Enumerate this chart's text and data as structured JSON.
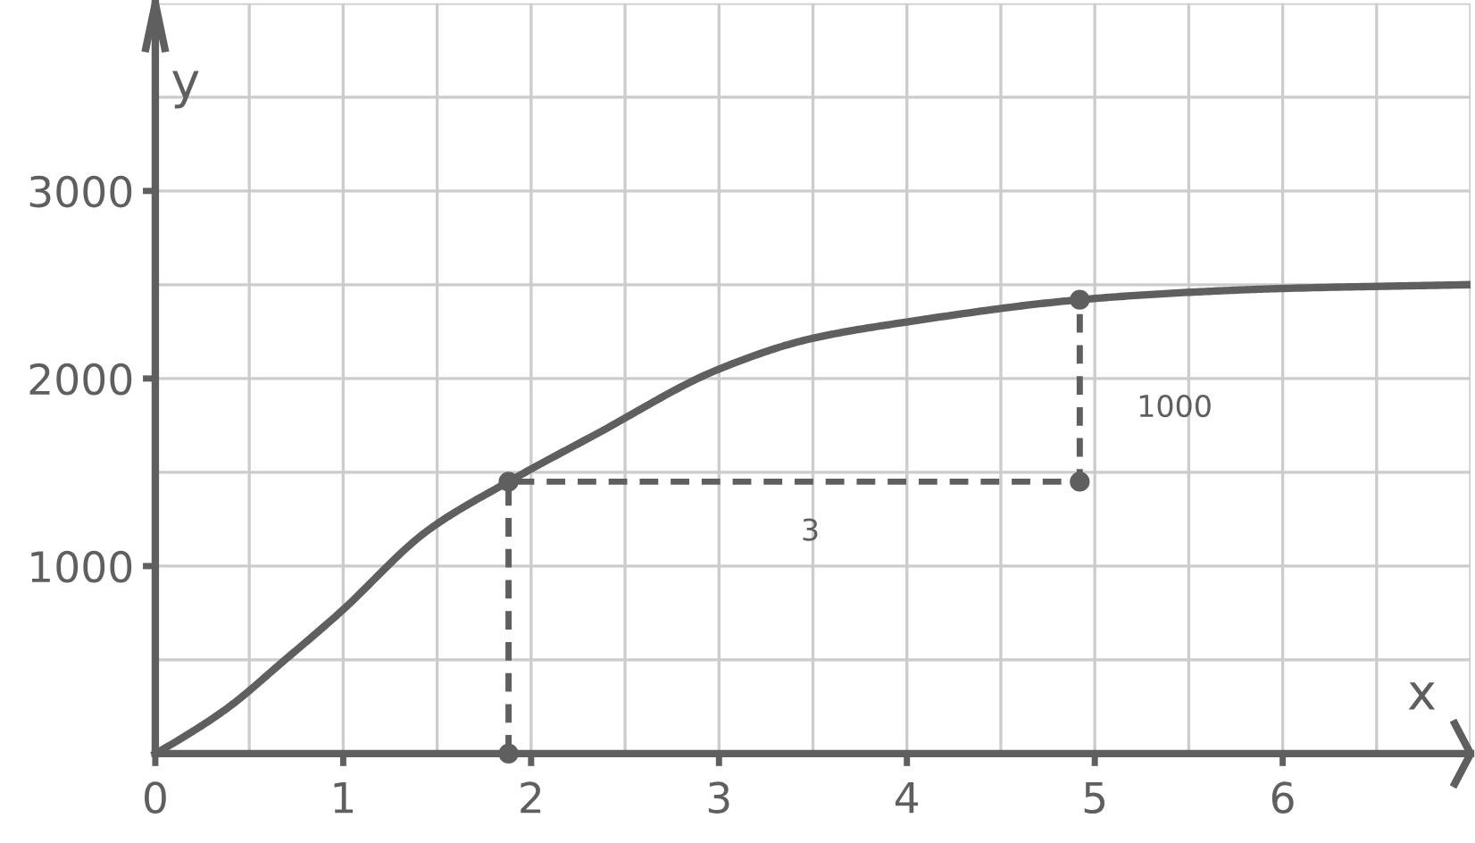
{
  "chart_data": {
    "type": "line",
    "xlabel": "x",
    "ylabel": "y",
    "series": [
      {
        "color": "#5f5f5f",
        "x": [
          0,
          0.12,
          0.38,
          0.69,
          0.98,
          1.45,
          1.88,
          2.34,
          3,
          3.48,
          3.99,
          4.92,
          5.51,
          6,
          6.98
        ],
        "values": [
          0,
          70,
          240,
          500,
          750,
          1190,
          1450,
          1700,
          2050,
          2210,
          2300,
          2420,
          2460,
          2480,
          2500
        ],
        "marker": "none",
        "line_style": "solid"
      },
      {
        "color": "#5f5f5f",
        "x": [
          1.88,
          1.88,
          4.92,
          4.92
        ],
        "values": [
          0,
          1450,
          1450,
          2420
        ],
        "marker": "circle",
        "line_style": "dashed"
      }
    ],
    "annotations": [
      "3",
      "1000"
    ],
    "xlim": [
      0,
      7
    ],
    "ylim": [
      0,
      4000
    ],
    "xticks": [
      0,
      {
        "value": 0.5,
        "label": null
      },
      1,
      {
        "value": 1.5,
        "label": null
      },
      2,
      {
        "value": 2.5,
        "label": null
      },
      3,
      {
        "value": 3.5,
        "label": null
      },
      4,
      {
        "value": 4.5,
        "label": null
      },
      5,
      {
        "value": 5.5,
        "label": null
      },
      6,
      {
        "value": 6.5,
        "label": null
      },
      {
        "value": 7,
        "label": null
      }
    ],
    "yticks": [
      {
        "value": 500,
        "label": null
      },
      1000,
      {
        "value": 1500,
        "label": null
      },
      2000,
      {
        "value": 2500,
        "label": null
      },
      3000,
      {
        "value": 3500,
        "label": null
      },
      {
        "value": 4000,
        "label": null
      }
    ],
    "grid": true
  }
}
